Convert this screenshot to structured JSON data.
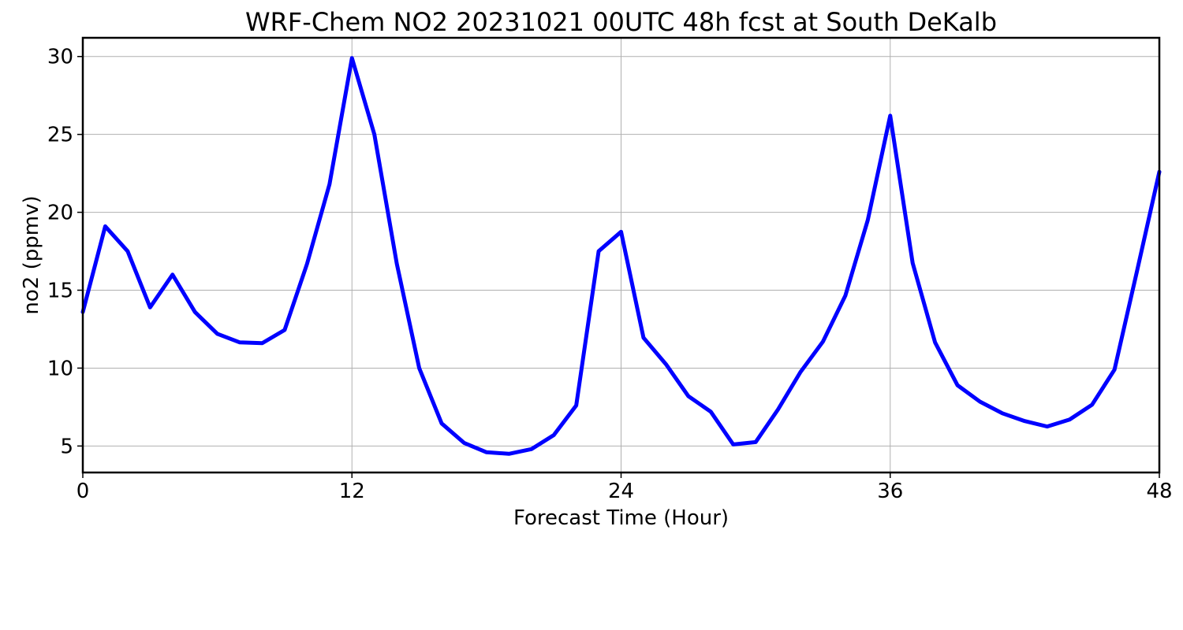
{
  "chart_data": {
    "type": "line",
    "title": "WRF-Chem NO2  20231021 00UTC 48h fcst at South DeKalb",
    "xlabel": "Forecast Time (Hour)",
    "ylabel": "no2  (ppmv)",
    "xlim": [
      0,
      48
    ],
    "ylim": [
      3.3,
      31.2
    ],
    "xticks": [
      0,
      12,
      24,
      36,
      48
    ],
    "yticks": [
      5,
      10,
      15,
      20,
      25,
      30
    ],
    "grid": true,
    "legend": "none",
    "x": [
      0,
      1,
      2,
      3,
      4,
      5,
      6,
      7,
      8,
      9,
      10,
      11,
      12,
      13,
      14,
      15,
      16,
      17,
      18,
      19,
      20,
      21,
      22,
      23,
      24,
      25,
      26,
      27,
      28,
      29,
      30,
      31,
      32,
      33,
      34,
      35,
      36,
      37,
      38,
      39,
      40,
      41,
      42,
      43,
      44,
      45,
      46,
      47,
      48
    ],
    "series": [
      {
        "color": "#0000ff",
        "values": [
          13.6,
          19.1,
          17.5,
          13.9,
          16.0,
          13.6,
          12.2,
          11.65,
          11.6,
          12.45,
          16.7,
          21.8,
          29.9,
          25.0,
          16.7,
          10.0,
          6.45,
          5.2,
          4.6,
          4.5,
          4.8,
          5.7,
          7.6,
          17.5,
          18.75,
          11.95,
          10.25,
          8.2,
          7.2,
          5.1,
          5.25,
          7.35,
          9.75,
          11.7,
          14.65,
          19.5,
          26.2,
          16.75,
          11.65,
          8.9,
          7.85,
          7.1,
          6.6,
          6.25,
          6.7,
          7.65,
          9.9,
          16.2,
          22.6
        ]
      }
    ]
  }
}
